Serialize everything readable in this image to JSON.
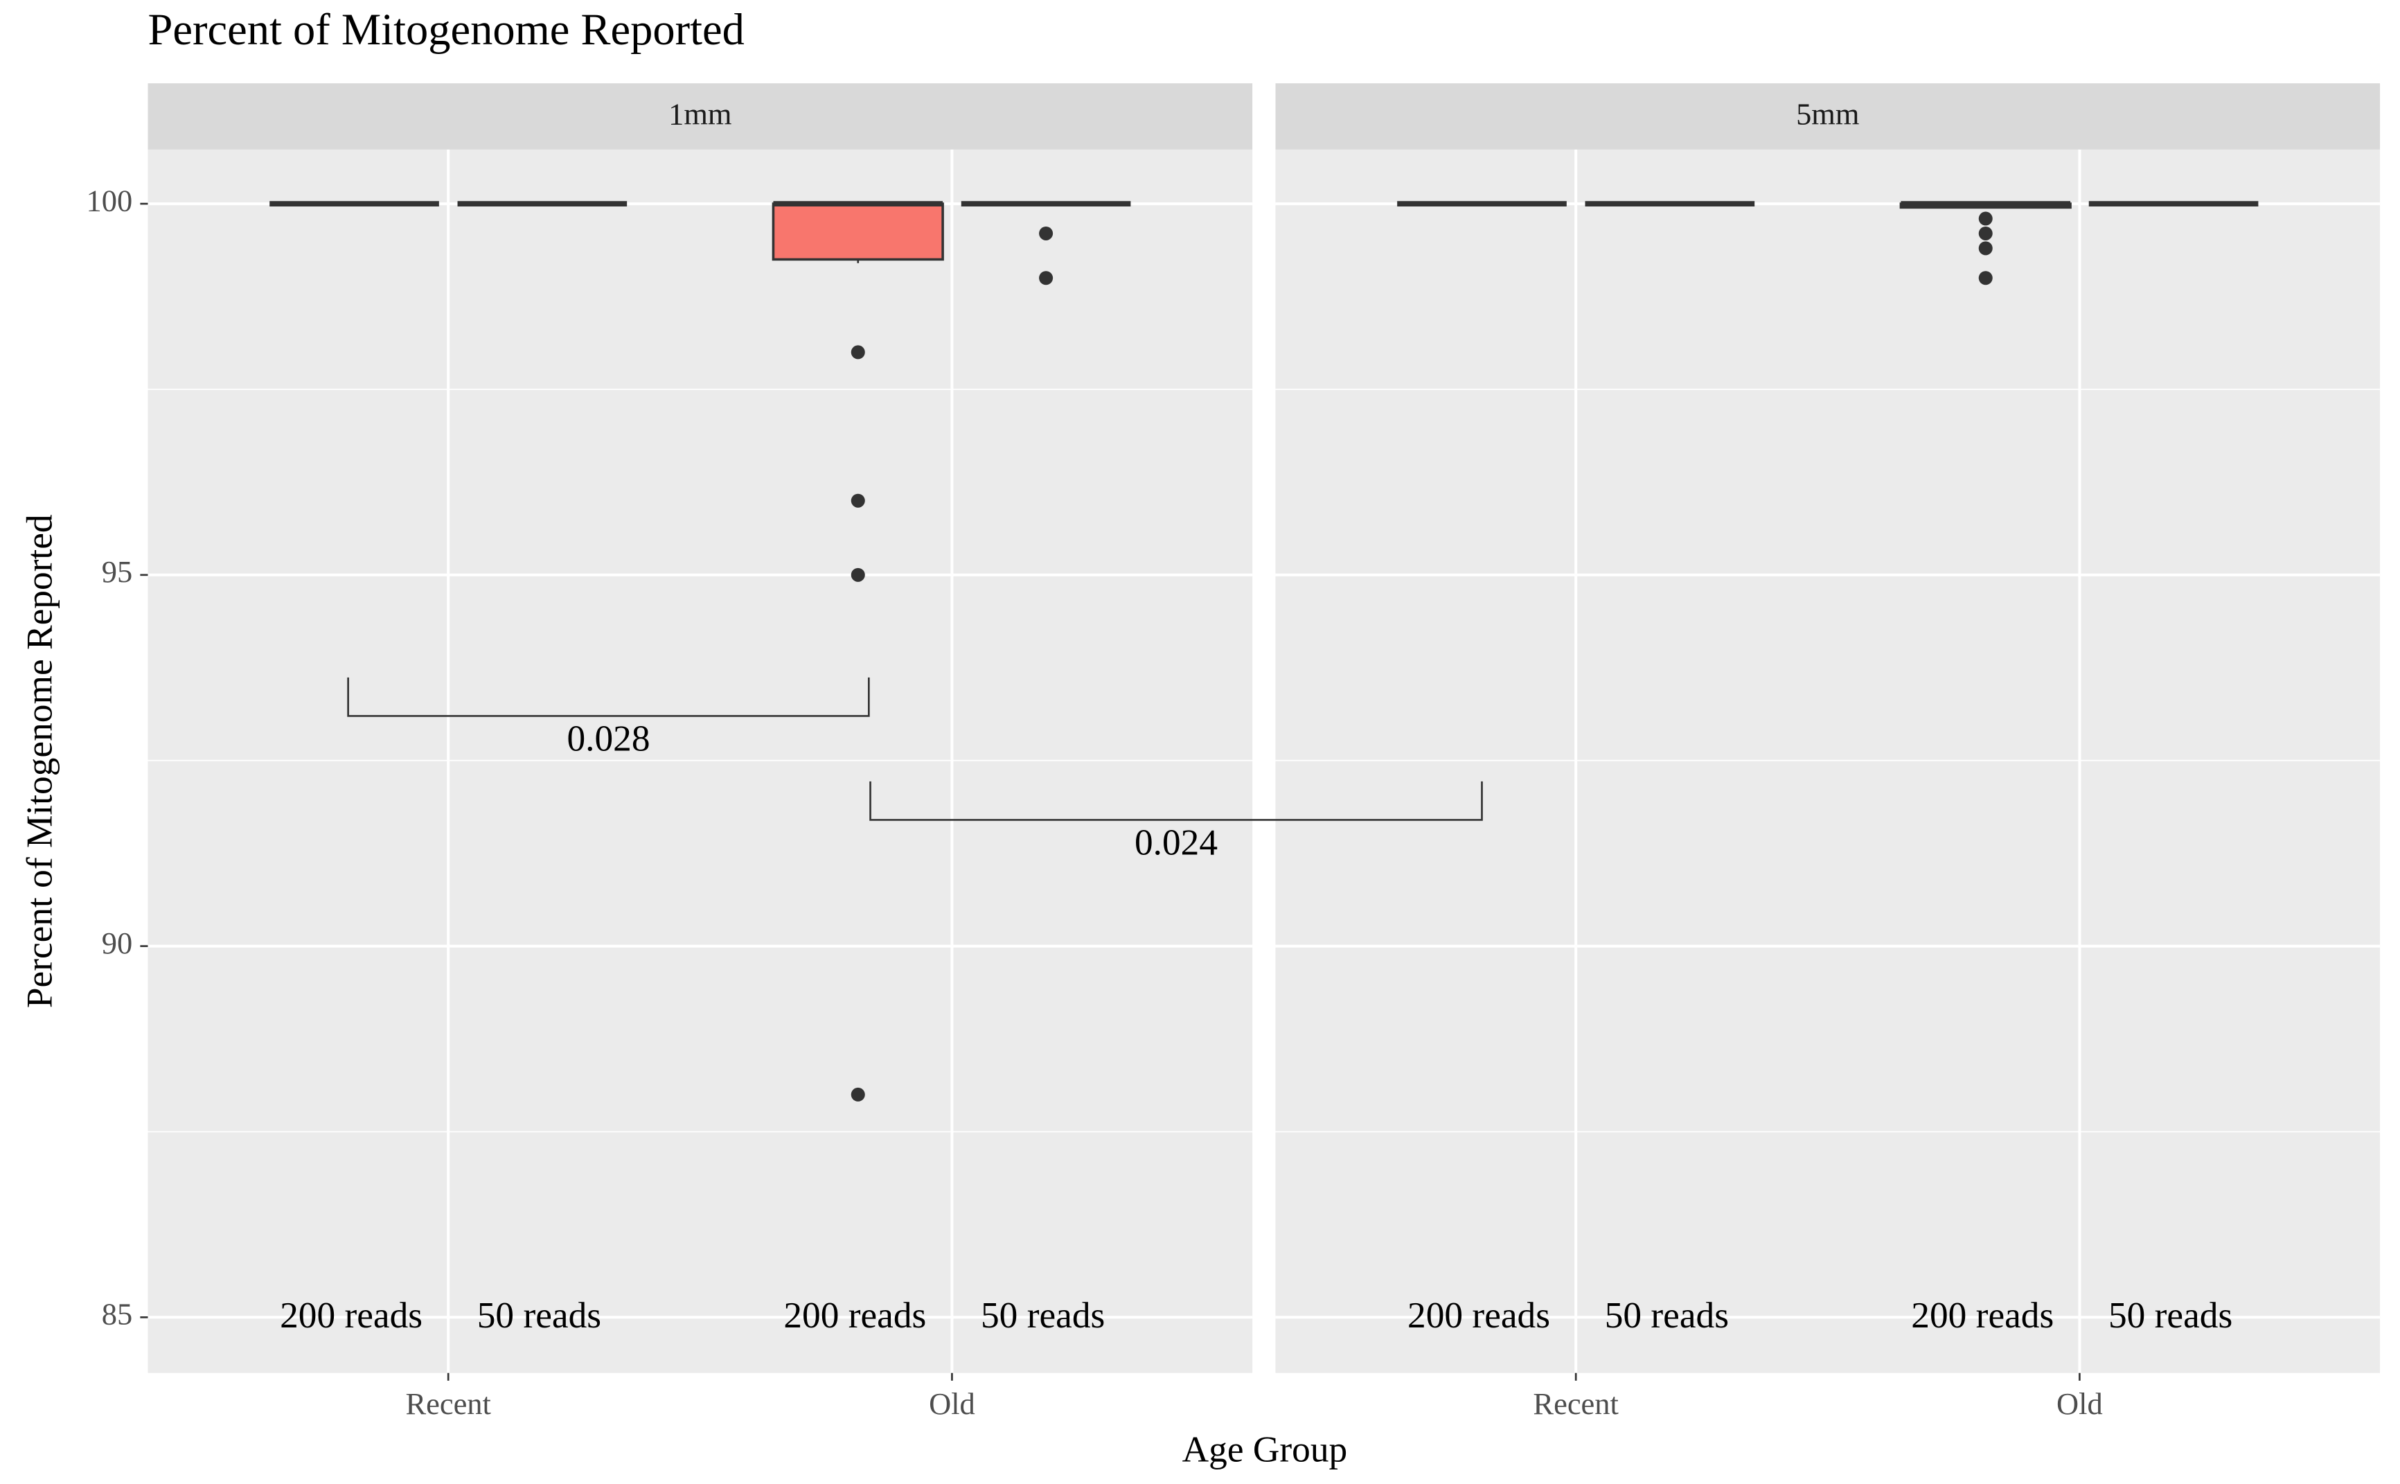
{
  "chart_data": {
    "type": "box",
    "title": "Percent of Mitogenome Reported",
    "xlabel": "Age Group",
    "ylabel": "Percent of Mitogenome Reported",
    "ylim": [
      84.25,
      100.73
    ],
    "yticks": [
      85,
      90,
      95,
      100
    ],
    "grid": true,
    "color": "#f8766d",
    "categories": [
      "Recent",
      "Old"
    ],
    "facets": [
      {
        "label": "1mm",
        "groups": [
          {
            "name": "200 reads",
            "boxes": [
              {
                "q1": 100,
                "median": 100,
                "q3": 100,
                "whislo": 100,
                "whishi": 100,
                "outliers": []
              },
              {
                "q1": 99.25,
                "median": 100,
                "q3": 100,
                "whislo": 99.2,
                "whishi": 100,
                "outliers": [
                  98,
                  96,
                  95,
                  88
                ]
              }
            ]
          },
          {
            "name": "50 reads",
            "boxes": [
              {
                "q1": 100,
                "median": 100,
                "q3": 100,
                "whislo": 100,
                "whishi": 100,
                "outliers": []
              },
              {
                "q1": 100,
                "median": 100,
                "q3": 100,
                "whislo": 100,
                "whishi": 100,
                "outliers": [
                  99.6,
                  99
                ]
              }
            ]
          }
        ]
      },
      {
        "label": "5mm",
        "groups": [
          {
            "name": "200 reads",
            "boxes": [
              {
                "q1": 100,
                "median": 100,
                "q3": 100,
                "whislo": 100,
                "whishi": 100,
                "outliers": []
              },
              {
                "q1": 99.95,
                "median": 100,
                "q3": 100,
                "whislo": 99.95,
                "whishi": 100,
                "outliers": [
                  99.8,
                  99.6,
                  99.4,
                  99
                ]
              }
            ]
          },
          {
            "name": "50 reads",
            "boxes": [
              {
                "q1": 100,
                "median": 100,
                "q3": 100,
                "whislo": 100,
                "whishi": 100,
                "outliers": []
              },
              {
                "q1": 100,
                "median": 100,
                "q3": 100,
                "whislo": 100,
                "whishi": 100,
                "outliers": []
              }
            ]
          }
        ]
      }
    ],
    "annotations": [
      {
        "text": "0.028",
        "y": 93.1
      },
      {
        "text": "0.024",
        "y": 91.7
      }
    ]
  }
}
